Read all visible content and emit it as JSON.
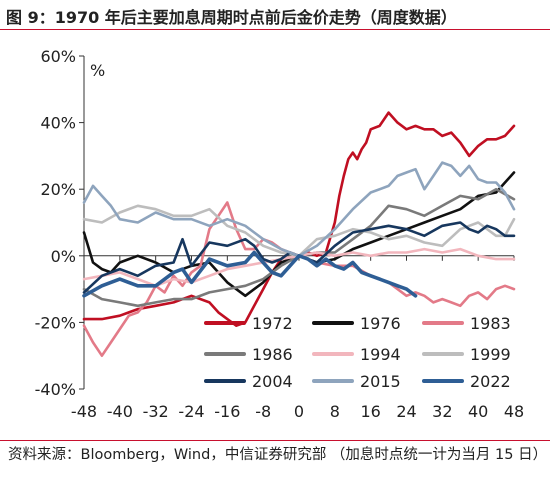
{
  "figure": {
    "title": "图 9：1970 年后主要加息周期时点前后金价走势（周度数据）",
    "source": "资料来源：Bloomberg，Wind，中信证券研究部 （加息时点统一计为当月 15 日）"
  },
  "chart_data": {
    "type": "line",
    "unit_label": "%",
    "x_ticks": [
      -48,
      -40,
      -32,
      -24,
      -16,
      -8,
      0,
      8,
      16,
      24,
      32,
      40,
      48
    ],
    "y_ticks": [
      -40,
      -20,
      0,
      20,
      40,
      60
    ],
    "y_tick_labels": [
      "-40%",
      "-20%",
      "0%",
      "20%",
      "40%",
      "60%"
    ],
    "xlim": [
      -48,
      48
    ],
    "ylim": [
      -40,
      60
    ],
    "grid": false,
    "legend_position": "lower-right",
    "series": [
      {
        "name": "1972",
        "color": "#c00f22",
        "width": 2.6,
        "x": [
          -48,
          -44,
          -40,
          -36,
          -32,
          -28,
          -24,
          -20,
          -18,
          -16,
          -14,
          -12,
          -10,
          -8,
          -6,
          -4,
          -2,
          0,
          2,
          4,
          6,
          8,
          9,
          10,
          11,
          12,
          13,
          14,
          15,
          16,
          18,
          20,
          22,
          24,
          26,
          28,
          30,
          32,
          34,
          36,
          38,
          40,
          42,
          44,
          46,
          48
        ],
        "y": [
          -19,
          -19,
          -18,
          -16,
          -15,
          -14,
          -12,
          -14,
          -17,
          -19,
          -21,
          -20,
          -15,
          -10,
          -5,
          -1,
          1,
          0,
          1,
          0,
          1,
          10,
          18,
          24,
          29,
          31,
          29,
          32,
          34,
          38,
          39,
          43,
          40,
          38,
          39,
          38,
          38,
          36,
          37,
          34,
          30,
          33,
          35,
          35,
          36,
          39
        ]
      },
      {
        "name": "1976",
        "color": "#111111",
        "width": 2.6,
        "x": [
          -48,
          -46,
          -44,
          -42,
          -40,
          -36,
          -32,
          -28,
          -24,
          -20,
          -16,
          -12,
          -8,
          -4,
          0,
          4,
          8,
          12,
          16,
          20,
          24,
          28,
          32,
          36,
          40,
          44,
          46,
          48
        ],
        "y": [
          7,
          -2,
          -4,
          -5,
          -2,
          0,
          -2,
          -5,
          -3,
          -2,
          -8,
          -12,
          -8,
          -2,
          0,
          -2,
          -1,
          2,
          4,
          6,
          8,
          10,
          12,
          14,
          18,
          19,
          22,
          25
        ]
      },
      {
        "name": "1983",
        "color": "#e37a88",
        "width": 2.6,
        "x": [
          -48,
          -46,
          -44,
          -42,
          -40,
          -38,
          -36,
          -34,
          -32,
          -30,
          -28,
          -26,
          -24,
          -22,
          -20,
          -18,
          -16,
          -14,
          -12,
          -10,
          -8,
          -6,
          -4,
          -2,
          0,
          4,
          8,
          12,
          16,
          20,
          22,
          24,
          26,
          28,
          30,
          32,
          34,
          36,
          38,
          40,
          42,
          44,
          46,
          48
        ],
        "y": [
          -21,
          -26,
          -30,
          -26,
          -22,
          -18,
          -17,
          -14,
          -9,
          -11,
          -6,
          -9,
          -5,
          -3,
          8,
          12,
          16,
          8,
          2,
          2,
          5,
          4,
          2,
          1,
          0,
          -2,
          -3,
          -3,
          -6,
          -8,
          -10,
          -12,
          -11,
          -12,
          -14,
          -13,
          -14,
          -15,
          -12,
          -11,
          -13,
          -10,
          -9,
          -10
        ]
      },
      {
        "name": "1986",
        "color": "#7a7a7a",
        "width": 2.6,
        "x": [
          -48,
          -44,
          -40,
          -36,
          -32,
          -28,
          -24,
          -20,
          -16,
          -12,
          -8,
          -4,
          0,
          4,
          8,
          12,
          16,
          20,
          24,
          28,
          32,
          36,
          40,
          44,
          48
        ],
        "y": [
          -10,
          -13,
          -14,
          -15,
          -14,
          -13,
          -13,
          -11,
          -10,
          -9,
          -7,
          -3,
          0,
          1,
          1,
          5,
          9,
          15,
          14,
          12,
          15,
          18,
          17,
          20,
          17
        ]
      },
      {
        "name": "1994",
        "color": "#f2b6bd",
        "width": 2.6,
        "x": [
          -48,
          -44,
          -40,
          -36,
          -32,
          -28,
          -24,
          -20,
          -16,
          -12,
          -8,
          -4,
          0,
          4,
          8,
          12,
          16,
          20,
          24,
          28,
          32,
          36,
          40,
          44,
          48
        ],
        "y": [
          -7,
          -6,
          -5,
          -7,
          -9,
          -7,
          -8,
          -6,
          -4,
          -3,
          -2,
          -1,
          0,
          1,
          0,
          1,
          0,
          1,
          1,
          2,
          1,
          2,
          0,
          -1,
          -1
        ]
      },
      {
        "name": "1999",
        "color": "#bdbdbd",
        "width": 2.6,
        "x": [
          -48,
          -44,
          -40,
          -36,
          -32,
          -28,
          -24,
          -20,
          -16,
          -12,
          -8,
          -4,
          0,
          4,
          8,
          12,
          16,
          20,
          24,
          28,
          32,
          36,
          40,
          44,
          46,
          48
        ],
        "y": [
          11,
          10,
          13,
          15,
          14,
          12,
          12,
          14,
          9,
          7,
          3,
          1,
          0,
          5,
          6,
          8,
          7,
          5,
          6,
          4,
          3,
          8,
          10,
          6,
          6,
          11
        ]
      },
      {
        "name": "2004",
        "color": "#17375e",
        "width": 2.6,
        "x": [
          -48,
          -44,
          -40,
          -36,
          -32,
          -28,
          -26,
          -24,
          -20,
          -16,
          -12,
          -10,
          -8,
          -6,
          -4,
          -2,
          0,
          4,
          8,
          12,
          16,
          20,
          24,
          28,
          32,
          36,
          38,
          40,
          42,
          44,
          46,
          48
        ],
        "y": [
          -11,
          -6,
          -4,
          -6,
          -3,
          -2,
          5,
          -3,
          4,
          3,
          5,
          3,
          -1,
          -2,
          -1,
          1,
          0,
          -2,
          3,
          7,
          8,
          9,
          8,
          6,
          9,
          10,
          8,
          7,
          9,
          8,
          6,
          6
        ]
      },
      {
        "name": "2015",
        "color": "#8ea4bd",
        "width": 2.6,
        "x": [
          -48,
          -46,
          -44,
          -42,
          -40,
          -36,
          -32,
          -28,
          -24,
          -20,
          -16,
          -12,
          -8,
          -4,
          0,
          4,
          8,
          12,
          16,
          20,
          22,
          24,
          26,
          28,
          30,
          32,
          34,
          36,
          38,
          40,
          42,
          44,
          46,
          48
        ],
        "y": [
          16,
          21,
          18,
          15,
          11,
          10,
          13,
          11,
          11,
          9,
          11,
          9,
          5,
          2,
          0,
          3,
          8,
          14,
          19,
          21,
          24,
          25,
          26,
          20,
          24,
          28,
          27,
          24,
          27,
          23,
          22,
          22,
          19,
          14
        ]
      },
      {
        "name": "2022",
        "color": "#2e5e95",
        "width": 3.6,
        "x": [
          -48,
          -44,
          -40,
          -36,
          -32,
          -28,
          -26,
          -24,
          -20,
          -16,
          -12,
          -10,
          -8,
          -6,
          -4,
          -2,
          0,
          2,
          4,
          6,
          8,
          10,
          12,
          14,
          16,
          18,
          20,
          22,
          24,
          26
        ],
        "y": [
          -12,
          -9,
          -7,
          -9,
          -9,
          -5,
          -4,
          -8,
          -1,
          -3,
          -2,
          1,
          -2,
          -5,
          -6,
          -3,
          0,
          -1,
          -3,
          -1,
          -3,
          -4,
          -2,
          -5,
          -6,
          -7,
          -8,
          -9,
          -10,
          -12
        ]
      }
    ]
  }
}
